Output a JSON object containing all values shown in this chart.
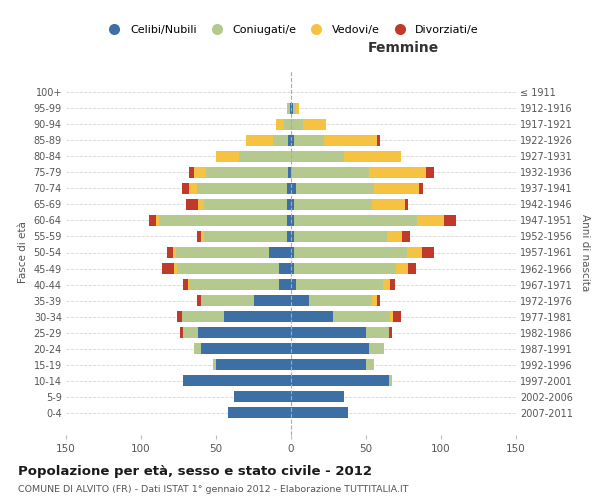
{
  "age_groups": [
    "0-4",
    "5-9",
    "10-14",
    "15-19",
    "20-24",
    "25-29",
    "30-34",
    "35-39",
    "40-44",
    "45-49",
    "50-54",
    "55-59",
    "60-64",
    "65-69",
    "70-74",
    "75-79",
    "80-84",
    "85-89",
    "90-94",
    "95-99",
    "100+"
  ],
  "birth_years": [
    "2007-2011",
    "2002-2006",
    "1997-2001",
    "1992-1996",
    "1987-1991",
    "1982-1986",
    "1977-1981",
    "1972-1976",
    "1967-1971",
    "1962-1966",
    "1957-1961",
    "1952-1956",
    "1947-1951",
    "1942-1946",
    "1937-1941",
    "1932-1936",
    "1927-1931",
    "1922-1926",
    "1917-1921",
    "1912-1916",
    "≤ 1911"
  ],
  "males": {
    "celibi": [
      42,
      38,
      72,
      50,
      60,
      62,
      45,
      25,
      8,
      8,
      15,
      3,
      3,
      3,
      3,
      2,
      0,
      2,
      0,
      1,
      0
    ],
    "coniugati": [
      0,
      0,
      0,
      2,
      5,
      10,
      28,
      35,
      60,
      68,
      62,
      55,
      85,
      55,
      60,
      55,
      35,
      10,
      5,
      2,
      0
    ],
    "vedovi": [
      0,
      0,
      0,
      0,
      0,
      0,
      0,
      0,
      1,
      2,
      2,
      2,
      2,
      4,
      5,
      8,
      15,
      18,
      5,
      0,
      0
    ],
    "divorziati": [
      0,
      0,
      0,
      0,
      0,
      2,
      3,
      3,
      3,
      8,
      4,
      3,
      5,
      8,
      5,
      3,
      0,
      0,
      0,
      0,
      0
    ]
  },
  "females": {
    "nubili": [
      38,
      35,
      65,
      50,
      52,
      50,
      28,
      12,
      3,
      2,
      2,
      2,
      2,
      2,
      3,
      0,
      0,
      2,
      0,
      1,
      0
    ],
    "coniugate": [
      0,
      0,
      2,
      5,
      10,
      15,
      38,
      42,
      58,
      68,
      75,
      62,
      82,
      52,
      52,
      52,
      35,
      20,
      8,
      2,
      0
    ],
    "vedove": [
      0,
      0,
      0,
      0,
      0,
      0,
      2,
      3,
      5,
      8,
      10,
      10,
      18,
      22,
      30,
      38,
      38,
      35,
      15,
      2,
      0
    ],
    "divorziate": [
      0,
      0,
      0,
      0,
      0,
      2,
      5,
      2,
      3,
      5,
      8,
      5,
      8,
      2,
      3,
      5,
      0,
      2,
      0,
      0,
      0
    ]
  },
  "colors": {
    "celibi": "#3d6fa5",
    "coniugati": "#b5c98e",
    "vedovi": "#f5c242",
    "divorziati": "#c0392b"
  },
  "legend_labels": [
    "Celibi/Nubili",
    "Coniugati/e",
    "Vedovi/e",
    "Divorziati/e"
  ],
  "title": "Popolazione per età, sesso e stato civile - 2012",
  "subtitle": "COMUNE DI ALVITO (FR) - Dati ISTAT 1° gennaio 2012 - Elaborazione TUTTITALIA.IT",
  "label_femmine": "Femmine",
  "ylabel_left": "Fasce di età",
  "ylabel_right": "Anni di nascita",
  "xlim": 150,
  "bg_color": "#ffffff",
  "grid_color": "#cccccc",
  "bar_height": 0.72
}
